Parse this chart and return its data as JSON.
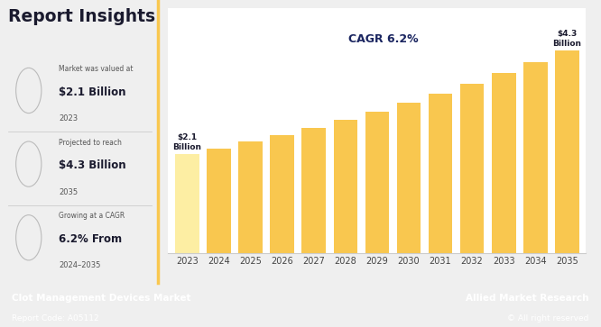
{
  "years": [
    2023,
    2024,
    2025,
    2026,
    2027,
    2028,
    2029,
    2030,
    2031,
    2032,
    2033,
    2034,
    2035
  ],
  "values": [
    2.1,
    2.23,
    2.37,
    2.51,
    2.67,
    2.83,
    3.01,
    3.19,
    3.39,
    3.6,
    3.82,
    4.06,
    4.3
  ],
  "bar_color_main": "#F9C74F",
  "bar_color_light": "#FDEEA3",
  "bg_color": "#efefef",
  "left_panel_bg": "#efefef",
  "chart_bg": "#ffffff",
  "title": "Report Insights",
  "title_color": "#1a1a2e",
  "cagr_text": "CAGR 6.2%",
  "cagr_color": "#1a2560",
  "first_bar_label": "$2.1\nBillion",
  "last_bar_label": "$4.3\nBillion",
  "footer_bg": "#1a2560",
  "footer_left_bold": "Clot Management Devices Market",
  "footer_left_sub": "Report Code: A05112",
  "footer_right_bold": "Allied Market Research",
  "footer_right_sub": "© All right reserved",
  "footer_text_color": "#ffffff",
  "info_label1": "Market was valued at",
  "info_value1": "$2.1 Billion",
  "info_year1": "2023",
  "info_label2": "Projected to reach",
  "info_value2": "$4.3 Billion",
  "info_year2": "2035",
  "info_label3": "Growing at a CAGR",
  "info_value3": "6.2% From",
  "info_year3": "2024–2035",
  "divider_color": "#cccccc",
  "ylim": [
    0,
    5.2
  ]
}
